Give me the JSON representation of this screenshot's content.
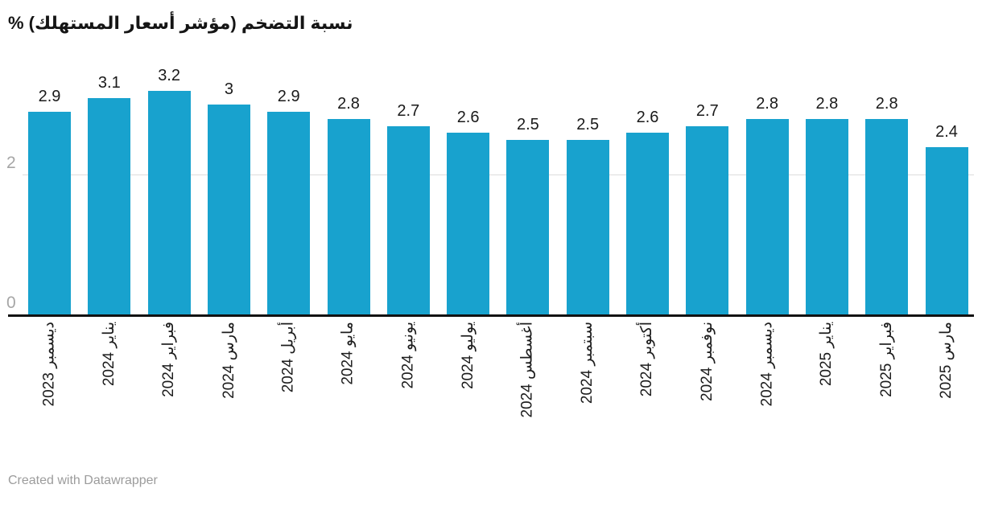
{
  "header": {
    "title": "نسبة التضخم (مؤشر أسعار المستهلك) %"
  },
  "footer": {
    "credit": "Created with Datawrapper"
  },
  "colors": {
    "bar": "#18a2ce",
    "axis": "#121212",
    "gridline": "#dcdcdc",
    "tick_label": "#a6a6a6",
    "text": "#1a1a1a",
    "footer_text": "#9c9c9c"
  },
  "chart_data": {
    "type": "bar",
    "title": "نسبة التضخم (مؤشر أسعار المستهلك) %",
    "categories": [
      "ديسمبر 2023",
      "يناير 2024",
      "فبراير 2024",
      "مارس 2024",
      "أبريل 2024",
      "مايو 2024",
      "يونيو 2024",
      "يوليو 2024",
      "أغسطس 2024",
      "سبتمبر 2024",
      "أكتوبر 2024",
      "نوفمبر 2024",
      "ديسمبر 2024",
      "يناير 2025",
      "فبراير 2025",
      "مارس 2025"
    ],
    "values": [
      2.9,
      3.1,
      3.2,
      3,
      2.9,
      2.8,
      2.7,
      2.6,
      2.5,
      2.5,
      2.6,
      2.7,
      2.8,
      2.8,
      2.8,
      2.4
    ],
    "value_labels": [
      "2.9",
      "3.1",
      "3.2",
      "3",
      "2.9",
      "2.8",
      "2.7",
      "2.6",
      "2.5",
      "2.5",
      "2.6",
      "2.7",
      "2.8",
      "2.8",
      "2.8",
      "2.4"
    ],
    "xlabel": "",
    "ylabel": "%",
    "ylim": [
      0,
      3.5
    ],
    "yticks": [
      {
        "value": 0,
        "label": "0"
      },
      {
        "value": 2,
        "label": "2"
      }
    ],
    "grid": "y",
    "legend": "none",
    "bar_color": "#18a2ce",
    "tick_label_rotation_deg": -90
  }
}
